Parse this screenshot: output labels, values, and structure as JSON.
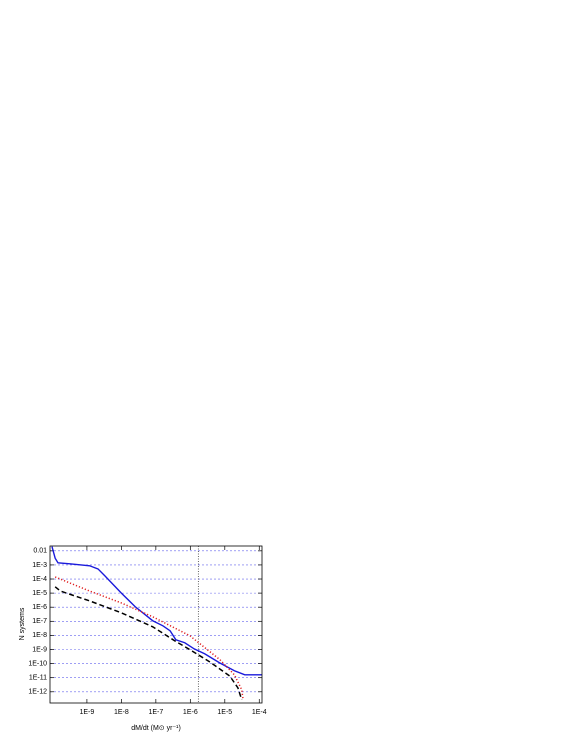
{
  "chart_data": {
    "type": "line",
    "log_x": true,
    "log_y": true,
    "grid": true,
    "x_label": "dM/dt   (M⊙ yr⁻¹)",
    "y_label": "N systems",
    "xlim": [
      8.5e-11,
      0.00012
    ],
    "ylim": [
      1.6e-13,
      0.022
    ],
    "xticks": [
      {
        "value": 1e-09,
        "label": "1E-9"
      },
      {
        "value": 1e-08,
        "label": "1E-8"
      },
      {
        "value": 1e-07,
        "label": "1E-7"
      },
      {
        "value": 1e-06,
        "label": "1E-6"
      },
      {
        "value": 1e-05,
        "label": "1E-5"
      },
      {
        "value": 0.0001,
        "label": "1E-4"
      }
    ],
    "yticks": [
      0.01,
      {
        "value": 0.001,
        "label": "1E-3"
      },
      {
        "value": 0.0001,
        "label": "1E-4"
      },
      {
        "value": 1e-05,
        "label": "1E-5"
      },
      {
        "value": 1e-06,
        "label": "1E-6"
      },
      {
        "value": 1e-07,
        "label": "1E-7"
      },
      {
        "value": 1e-08,
        "label": "1E-8"
      },
      {
        "value": 1e-09,
        "label": "1E-9"
      },
      {
        "value": 1e-10,
        "label": "1E-10"
      },
      {
        "value": 1e-11,
        "label": "1E-11"
      },
      {
        "value": 1e-12,
        "label": "1E-12"
      }
    ],
    "vline": 1.7e-06,
    "series": [
      {
        "color": "#1a1adb",
        "style": "solid",
        "x": [
          9.7e-11,
          1.2e-10,
          1.45e-10,
          3.2e-10,
          1.2e-09,
          2.1e-09,
          3.3e-09,
          1e-08,
          2.5e-08,
          8.1e-08,
          1.6e-07,
          2.6e-07,
          3.8e-07,
          6.9e-07,
          1.3e-06,
          2.6e-06,
          7.2e-06,
          1.9e-05,
          3.8e-05,
          0.00012
        ],
        "values": [
          0.02,
          0.003,
          0.0014,
          0.0012,
          0.00087,
          0.00052,
          0.00017,
          1e-05,
          1.1e-06,
          1.1e-07,
          4.8e-08,
          2.1e-08,
          4.9e-09,
          3e-09,
          1.1e-09,
          5e-10,
          1.1e-10,
          3.1e-11,
          1.6e-11,
          1.6e-11
        ]
      },
      {
        "color": "#e02020",
        "style": "dotted",
        "x": [
          1.2e-10,
          1.2e-09,
          1e-08,
          8.1e-08,
          9.8e-07,
          7.2e-06,
          1.9e-05,
          3.1e-05,
          3.4e-05
        ],
        "values": [
          0.00014,
          1.4e-05,
          2e-06,
          2.1e-07,
          9.3e-09,
          1.9e-10,
          1.6e-11,
          1.4e-12,
          2.7e-13
        ]
      },
      {
        "color": "#000000",
        "style": "dashed",
        "x": [
          1.2e-10,
          1.7e-10,
          1.2e-09,
          1e-08,
          8.1e-08,
          3.5e-07,
          9.8e-07,
          3.7e-06,
          1.4e-05,
          2.4e-05,
          3.1e-05
        ],
        "values": [
          2.8e-05,
          1.4e-05,
          2.8e-06,
          4e-07,
          4.1e-08,
          4.2e-09,
          9.6e-10,
          1.3e-10,
          1.3e-11,
          1.9e-12,
          2.7e-13
        ]
      }
    ]
  }
}
